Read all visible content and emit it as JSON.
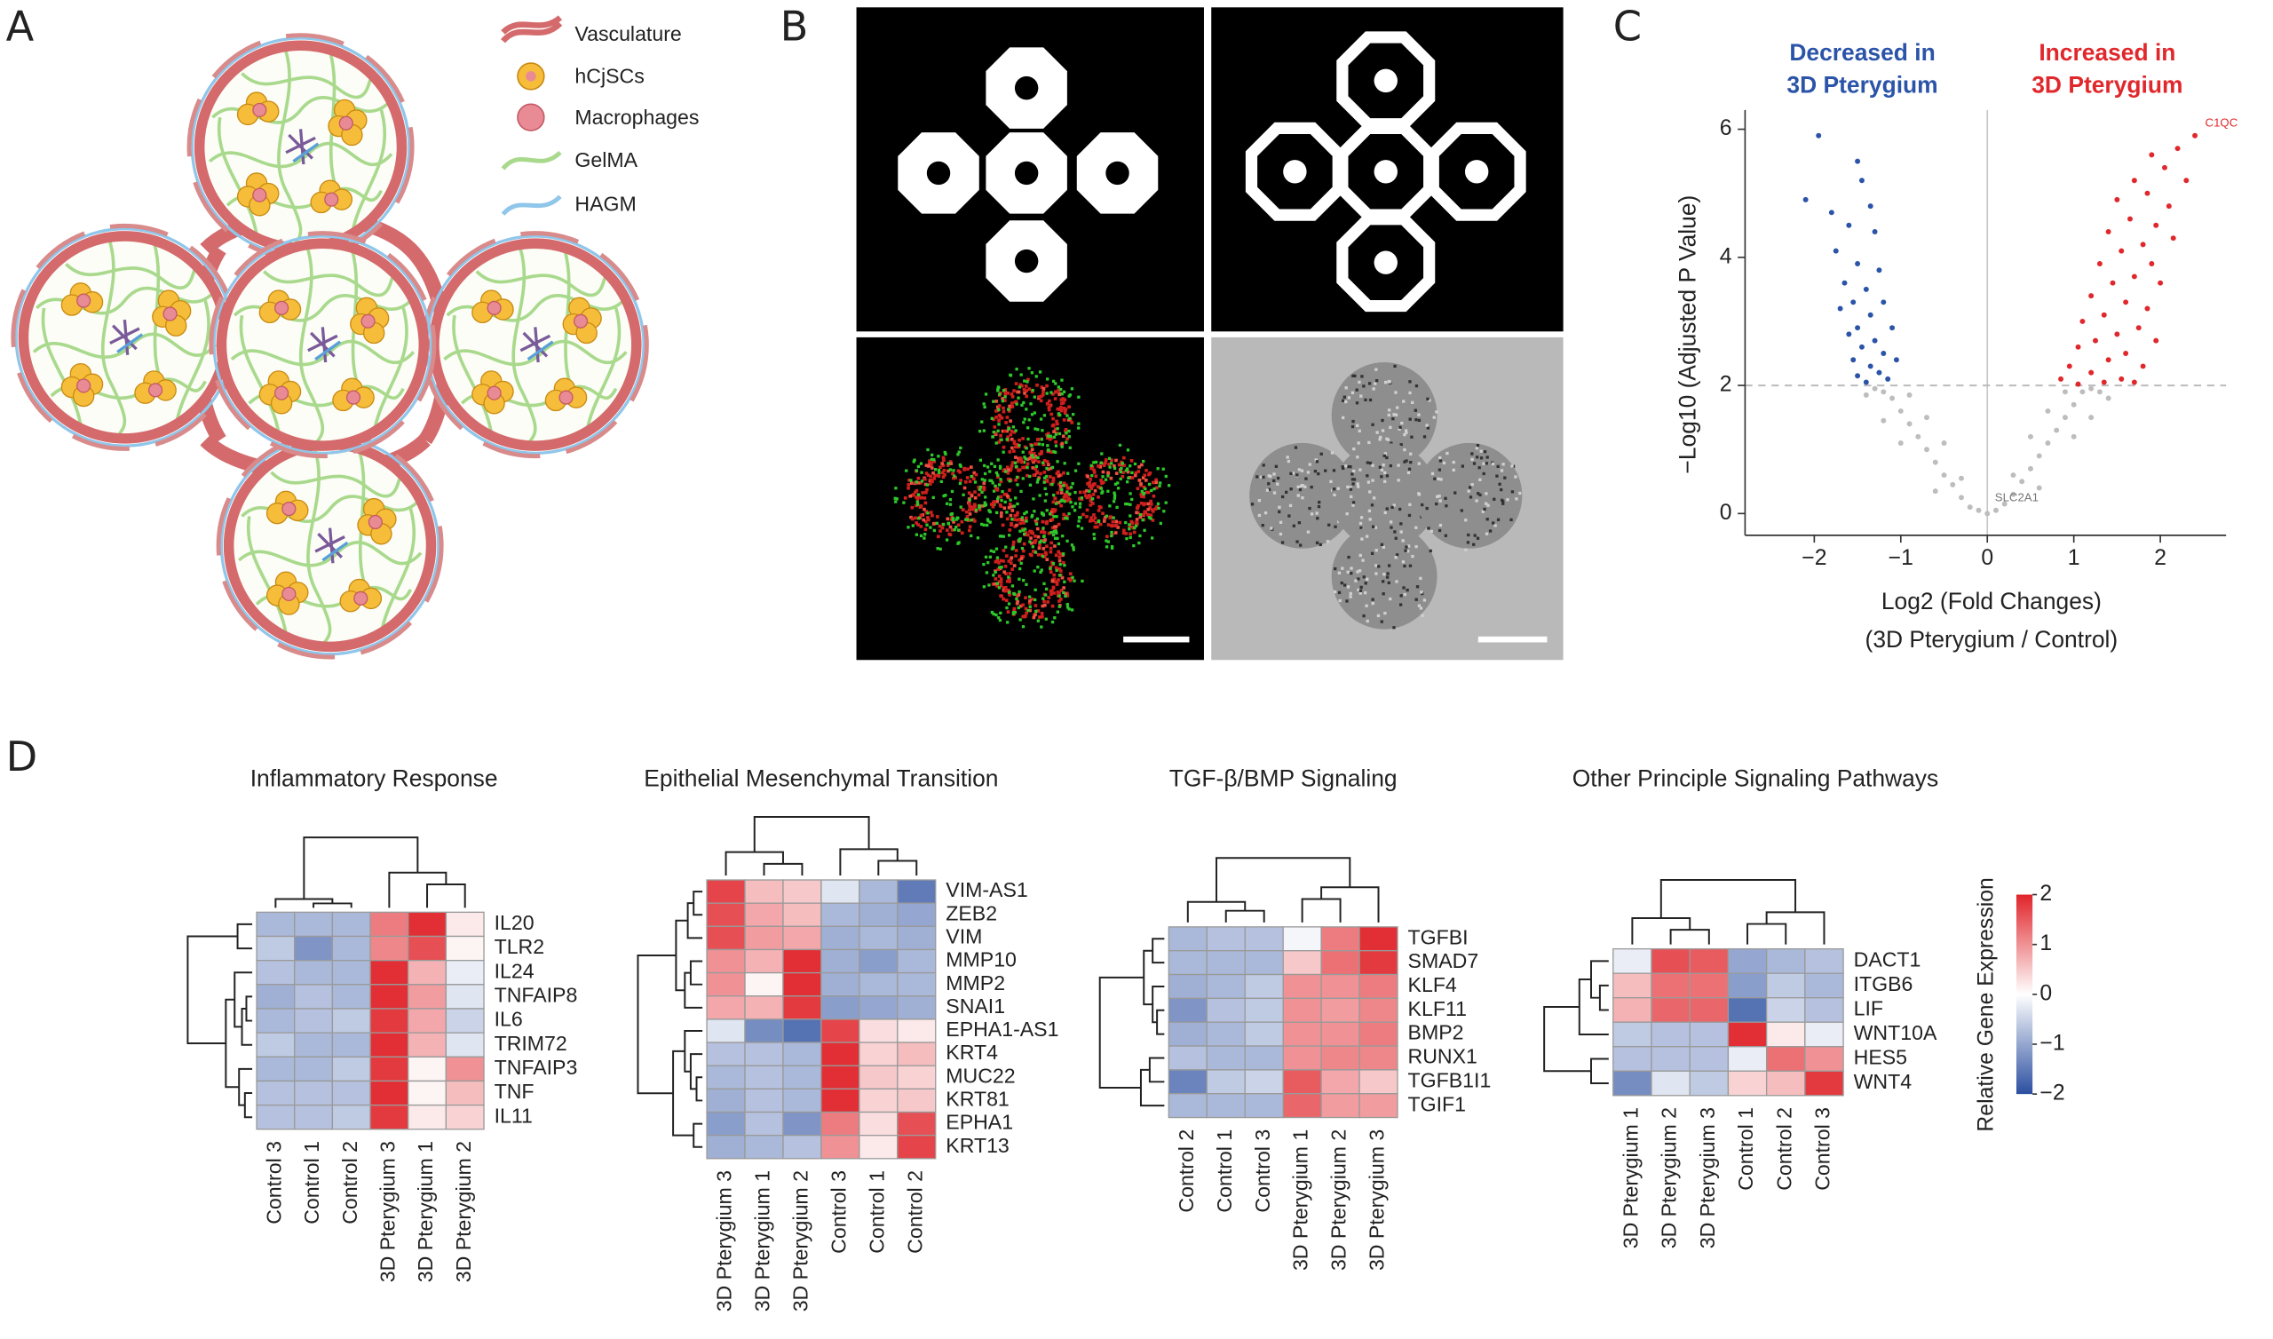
{
  "panel_labels": [
    "A",
    "B",
    "C",
    "D"
  ],
  "panel_a": {
    "legend": [
      "Vasculature",
      "hCjSCs",
      "Macrophages",
      "GelMA",
      "HAGM"
    ]
  },
  "chart_data": [
    {
      "type": "scatter",
      "xlabel": [
        "Log2 (Fold Changes)",
        "(3D Pterygium / Control)"
      ],
      "ylabel": "−Log10 (Adjusted P Value)",
      "xlim": [
        -2.8,
        2.76
      ],
      "ylim": [
        -0.34,
        6.3
      ],
      "xticks": [
        {
          "value": -2,
          "label": "−2"
        },
        {
          "value": -1,
          "label": "−1"
        },
        0,
        1,
        2
      ],
      "yticks": [
        0,
        2,
        4,
        6
      ],
      "threshold": 2,
      "annotations": {
        "decreased": [
          "Decreased in",
          "3D Pterygium"
        ],
        "increased": [
          "Increased in",
          "3D Pterygium"
        ]
      },
      "gene_labels": [
        {
          "text": "C1QC",
          "x": 2.45,
          "y": 5.95
        },
        {
          "text": "SLC2A1",
          "x": 0.02,
          "y": 0.1
        }
      ],
      "series": [
        {
          "color": "#2b54a8",
          "x": [
            -1.95,
            -2.1,
            -1.8,
            -1.5,
            -1.45,
            -1.35,
            -1.6,
            -1.3,
            -1.75,
            -1.5,
            -1.25,
            -1.65,
            -1.4,
            -1.55,
            -1.2,
            -1.7,
            -1.35,
            -1.5,
            -1.1,
            -1.6,
            -1.3,
            -1.45,
            -1.2,
            -1.05,
            -1.55,
            -1.35,
            -1.25,
            -1.5,
            -1.15,
            -1.4
          ],
          "y": [
            5.9,
            4.9,
            4.7,
            5.5,
            5.2,
            4.8,
            4.5,
            4.4,
            4.1,
            3.9,
            3.8,
            3.6,
            3.5,
            3.3,
            3.3,
            3.2,
            3.1,
            2.9,
            2.9,
            2.8,
            2.7,
            2.6,
            2.5,
            2.4,
            2.4,
            2.3,
            2.2,
            2.15,
            2.1,
            2.05
          ]
        },
        {
          "color": "#e0282c",
          "x": [
            2.4,
            2.2,
            1.9,
            2.05,
            1.7,
            2.3,
            1.85,
            1.5,
            2.1,
            1.65,
            1.95,
            1.4,
            1.8,
            2.15,
            1.55,
            1.3,
            1.9,
            1.7,
            1.45,
            2.0,
            1.2,
            1.6,
            1.85,
            1.35,
            1.1,
            1.75,
            1.5,
            1.25,
            1.95,
            1.05,
            1.6,
            1.4,
            0.95,
            1.8,
            1.2,
            1.55,
            0.85,
            1.35,
            1.7,
            1.05
          ],
          "y": [
            5.9,
            5.7,
            5.6,
            5.4,
            5.2,
            5.2,
            5.0,
            4.9,
            4.8,
            4.6,
            4.5,
            4.4,
            4.2,
            4.3,
            4.1,
            3.9,
            3.9,
            3.7,
            3.6,
            3.6,
            3.4,
            3.3,
            3.2,
            3.1,
            3.0,
            2.9,
            2.8,
            2.7,
            2.7,
            2.6,
            2.5,
            2.4,
            2.3,
            2.3,
            2.2,
            2.1,
            2.1,
            2.05,
            2.05,
            2.02
          ]
        },
        {
          "color": "#bdbdbd",
          "x": [
            0,
            0.1,
            -0.1,
            0.2,
            -0.2,
            0.3,
            -0.3,
            0.4,
            -0.4,
            0.5,
            -0.5,
            0.6,
            -0.6,
            0.7,
            -0.7,
            0.8,
            -0.8,
            0.9,
            -0.9,
            1.0,
            -1.0,
            1.1,
            -1.1,
            1.2,
            -1.2,
            0.5,
            -0.5,
            0.7,
            -0.7,
            0.9,
            -0.9,
            1.3,
            -1.3,
            0.3,
            -0.3,
            1.4,
            -1.4,
            0.6,
            -0.6,
            1.0,
            -1.0,
            1.2,
            -1.2
          ],
          "y": [
            0,
            0.05,
            0.05,
            0.15,
            0.1,
            0.3,
            0.25,
            0.5,
            0.45,
            0.7,
            0.6,
            0.9,
            0.8,
            1.1,
            1.0,
            1.3,
            1.2,
            1.5,
            1.4,
            1.7,
            1.6,
            1.9,
            1.8,
            1.95,
            1.9,
            1.2,
            1.1,
            1.6,
            1.5,
            1.9,
            1.85,
            1.9,
            1.95,
            0.6,
            0.55,
            1.8,
            1.85,
            0.4,
            0.35,
            1.2,
            1.1,
            1.5,
            1.45
          ]
        }
      ]
    },
    {
      "type": "heatmap",
      "title": "Inflammatory Response",
      "columns": [
        "Control 3",
        "Control 1",
        "Control 2",
        "3D Pterygium 3",
        "3D Pterygium 1",
        "3D Pterygium 2"
      ],
      "rows": [
        "IL20",
        "TLR2",
        "IL24",
        "TNFAIP8",
        "IL6",
        "TRIM72",
        "TNFAIP3",
        "TNF",
        "IL11"
      ],
      "values": [
        [
          -0.8,
          -0.8,
          -0.8,
          1.2,
          1.9,
          0.2
        ],
        [
          -0.6,
          -1.2,
          -0.8,
          1.1,
          1.6,
          0.1
        ],
        [
          -0.7,
          -0.8,
          -0.8,
          1.9,
          0.7,
          -0.2
        ],
        [
          -0.9,
          -0.7,
          -0.8,
          1.9,
          0.9,
          -0.3
        ],
        [
          -0.8,
          -0.7,
          -0.6,
          1.8,
          0.8,
          -0.5
        ],
        [
          -0.6,
          -0.8,
          -0.8,
          1.9,
          0.7,
          -0.3
        ],
        [
          -0.8,
          -0.8,
          -0.6,
          1.8,
          0.1,
          1.0
        ],
        [
          -0.7,
          -0.7,
          -0.7,
          1.9,
          0.1,
          0.6
        ],
        [
          -0.7,
          -0.7,
          -0.6,
          1.8,
          0.2,
          0.4
        ]
      ]
    },
    {
      "type": "heatmap",
      "title": "Epithelial Mesenchymal Transition",
      "columns": [
        "3D Pterygium 3",
        "3D Pterygium 1",
        "3D Pterygium 2",
        "Control 3",
        "Control 1",
        "Control 2"
      ],
      "rows": [
        "VIM-AS1",
        "ZEB2",
        "VIM",
        "MMP10",
        "MMP2",
        "SNAI1",
        "EPHA1-AS1",
        "KRT4",
        "MUC22",
        "KRT81",
        "EPHA1",
        "KRT13"
      ],
      "values": [
        [
          1.7,
          0.6,
          0.5,
          -0.3,
          -0.8,
          -1.5
        ],
        [
          1.6,
          0.8,
          0.6,
          -0.8,
          -0.9,
          -1.0
        ],
        [
          1.6,
          0.9,
          0.8,
          -0.9,
          -0.8,
          -0.9
        ],
        [
          1.0,
          0.7,
          1.9,
          -0.9,
          -1.1,
          -0.8
        ],
        [
          1.0,
          0.1,
          1.9,
          -0.9,
          -0.8,
          -0.8
        ],
        [
          0.8,
          0.7,
          1.8,
          -1.1,
          -1.0,
          -0.9
        ],
        [
          -0.3,
          -1.3,
          -1.6,
          1.7,
          0.3,
          0.2
        ],
        [
          -0.7,
          -0.7,
          -0.8,
          1.9,
          0.4,
          0.6
        ],
        [
          -0.8,
          -0.7,
          -0.8,
          1.9,
          0.5,
          0.4
        ],
        [
          -0.9,
          -0.7,
          -0.8,
          1.9,
          0.4,
          0.5
        ],
        [
          -1.1,
          -0.7,
          -1.2,
          1.2,
          0.3,
          1.6
        ],
        [
          -0.9,
          -0.8,
          -0.7,
          1.0,
          0.2,
          1.7
        ]
      ]
    },
    {
      "type": "heatmap",
      "title": "TGF-β/BMP Signaling",
      "columns": [
        "Control 2",
        "Control 1",
        "Control 3",
        "3D Pterygium 1",
        "3D Pterygium 2",
        "3D Pterygium 3"
      ],
      "rows": [
        "TGFBI",
        "SMAD7",
        "KLF4",
        "KLF11",
        "BMP2",
        "RUNX1",
        "TGFB1I1",
        "TGIF1"
      ],
      "values": [
        [
          -0.8,
          -0.7,
          -0.7,
          -0.1,
          1.2,
          1.9
        ],
        [
          -0.8,
          -0.8,
          -0.8,
          0.5,
          1.3,
          1.8
        ],
        [
          -0.9,
          -0.8,
          -0.6,
          1.0,
          1.0,
          1.2
        ],
        [
          -1.2,
          -0.7,
          -0.6,
          1.0,
          0.9,
          1.1
        ],
        [
          -0.9,
          -0.8,
          -0.6,
          1.0,
          1.0,
          1.2
        ],
        [
          -0.7,
          -0.8,
          -0.8,
          1.0,
          1.1,
          1.1
        ],
        [
          -1.4,
          -0.6,
          -0.5,
          1.5,
          0.8,
          0.5
        ],
        [
          -0.8,
          -0.8,
          -0.8,
          1.4,
          0.9,
          0.9
        ]
      ]
    },
    {
      "type": "heatmap",
      "title": "Other Principle Signaling Pathways",
      "columns": [
        "3D Pterygium 1",
        "3D Pterygium 2",
        "3D Pterygium 3",
        "Control 1",
        "Control 2",
        "Control 3"
      ],
      "rows": [
        "DACT1",
        "ITGB6",
        "LIF",
        "WNT10A",
        "HES5",
        "WNT4"
      ],
      "values": [
        [
          -0.2,
          1.6,
          1.5,
          -1.0,
          -0.8,
          -0.7
        ],
        [
          0.6,
          1.3,
          1.3,
          -1.1,
          -0.6,
          -0.8
        ],
        [
          0.7,
          1.4,
          1.4,
          -1.6,
          -0.5,
          -0.7
        ],
        [
          -0.6,
          -0.7,
          -0.7,
          1.9,
          0.2,
          -0.2
        ],
        [
          -0.7,
          -0.7,
          -0.7,
          -0.2,
          1.3,
          1.0
        ],
        [
          -1.3,
          -0.3,
          -0.6,
          0.4,
          0.6,
          1.8
        ]
      ]
    }
  ],
  "colorbar": {
    "label": "Relative Gene Expression",
    "lim": [
      -2,
      2
    ],
    "ticks": [
      2,
      1,
      0,
      {
        "value": -1,
        "label": "−1"
      },
      {
        "value": -2,
        "label": "−2"
      }
    ],
    "colors": [
      "#2b4fa0",
      "#ffffff",
      "#e0242a"
    ]
  }
}
